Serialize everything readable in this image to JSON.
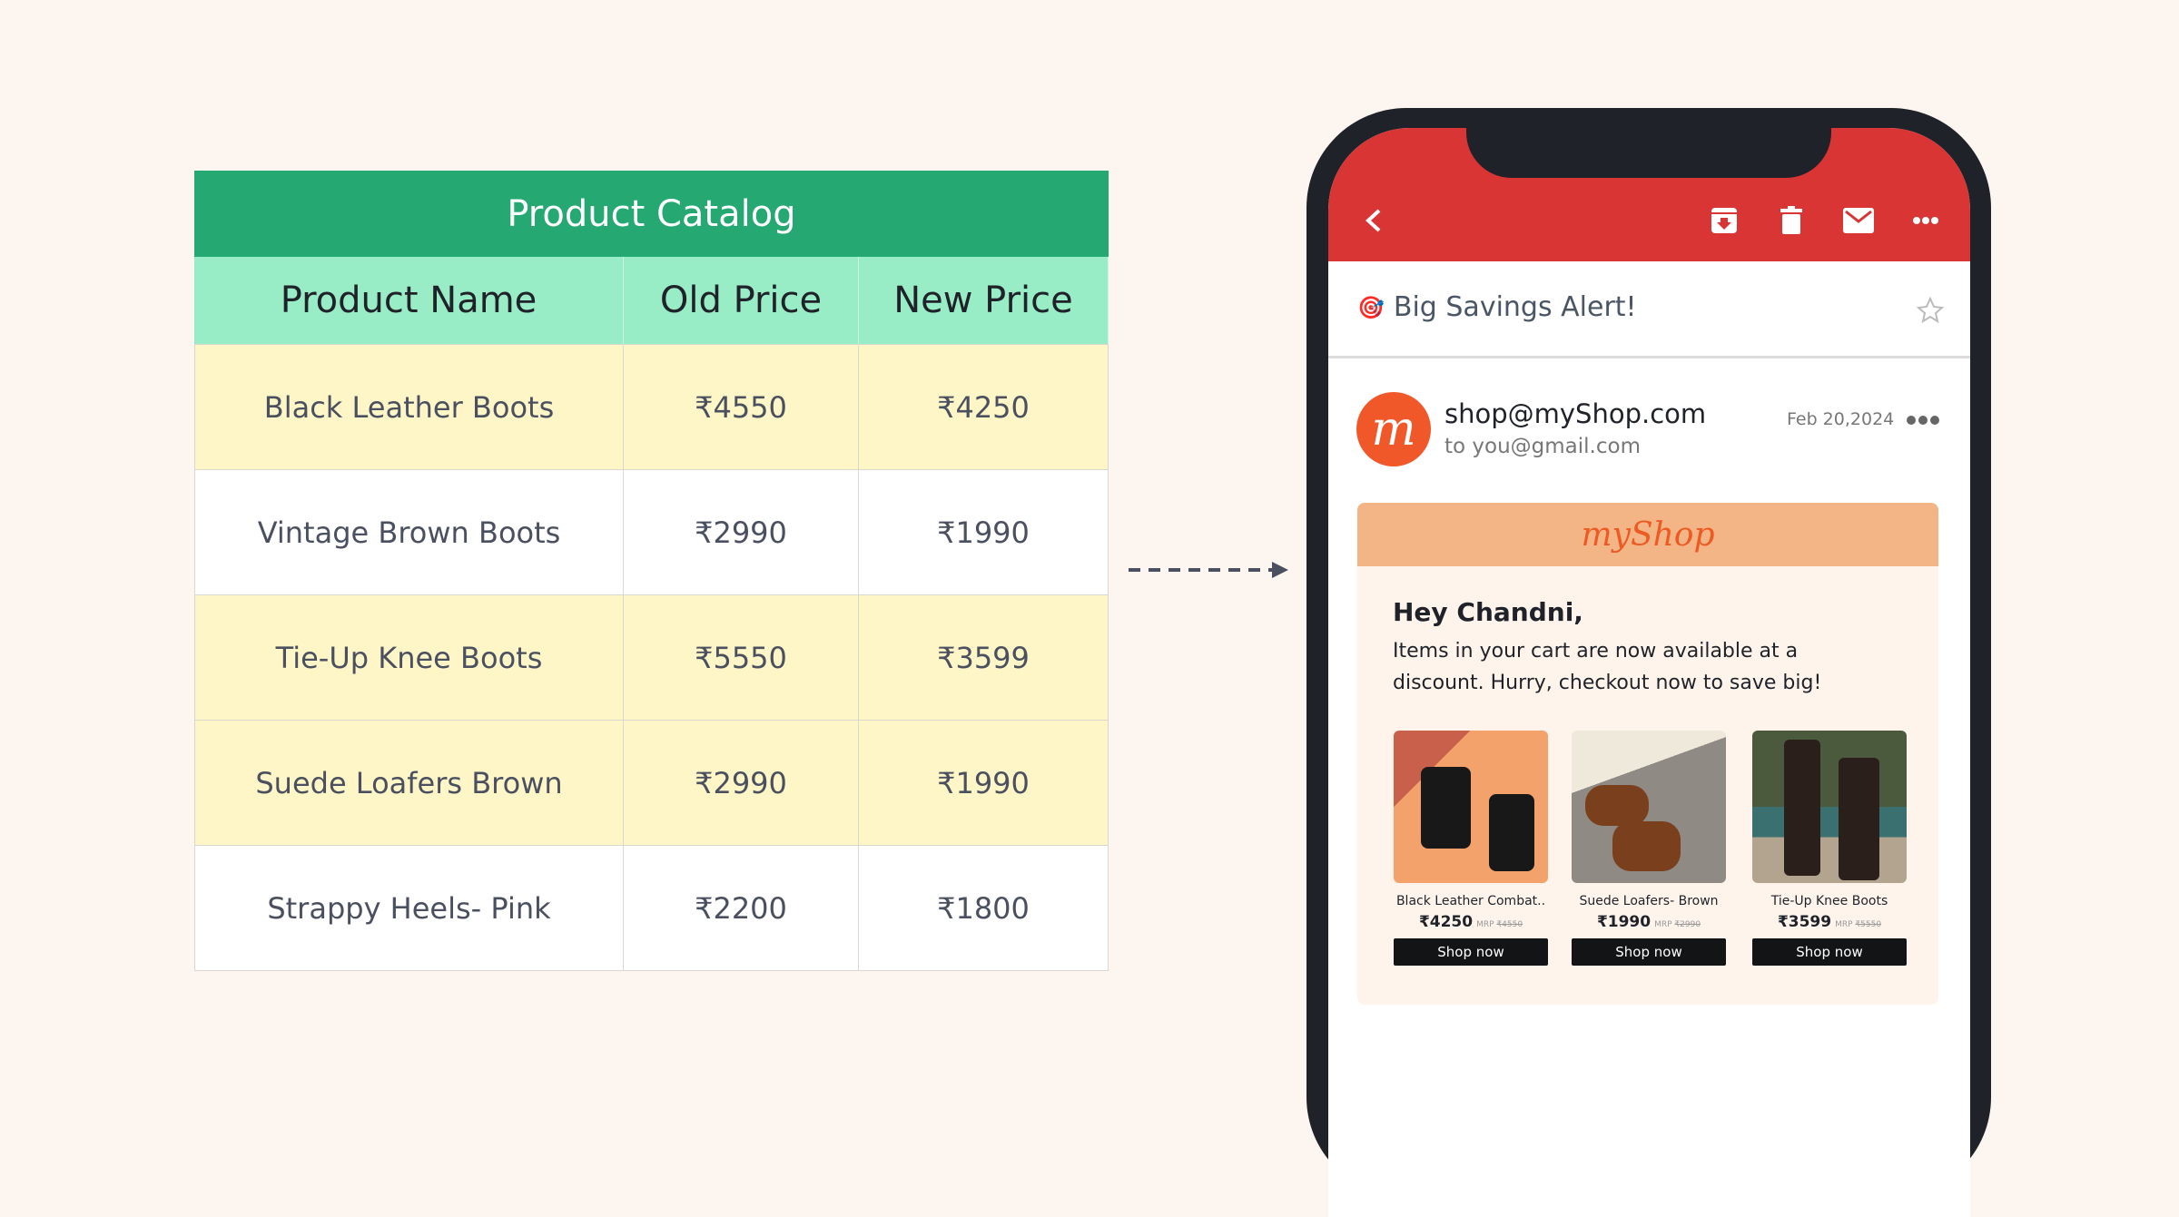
{
  "catalog": {
    "title": "Product Catalog",
    "headers": [
      "Product Name",
      "Old Price",
      "New Price"
    ],
    "rows": [
      [
        "Black Leather Boots",
        "₹4550",
        "₹4250"
      ],
      [
        "Vintage Brown Boots",
        "₹2990",
        "₹1990"
      ],
      [
        "Tie-Up Knee Boots",
        "₹5550",
        "₹3599"
      ],
      [
        "Suede Loafers Brown",
        "₹2990",
        "₹1990"
      ],
      [
        "Strappy Heels- Pink",
        "₹2200",
        "₹1800"
      ]
    ]
  },
  "email": {
    "subject": "Big Savings Alert!",
    "subject_icon": "🎯",
    "from": "shop@myShop.com",
    "to": "to you@gmail.com",
    "date": "Feb 20,2024",
    "avatar_letter": "m",
    "brand": "myShop",
    "greeting": "Hey Chandni,",
    "body": "Items in your cart are now available at a discount. Hurry, checkout now to save big!",
    "products": [
      {
        "name": "Black Leather Combat..",
        "price": "₹4250",
        "mrp_label": "MRP",
        "mrp": "₹4550",
        "cta": "Shop now"
      },
      {
        "name": "Suede Loafers- Brown",
        "price": "₹1990",
        "mrp_label": "MRP",
        "mrp": "₹2990",
        "cta": "Shop now"
      },
      {
        "name": "Tie-Up Knee Boots",
        "price": "₹3599",
        "mrp_label": "MRP",
        "mrp": "₹5550",
        "cta": "Shop now"
      }
    ]
  },
  "colors": {
    "accent_green": "#25a872",
    "header_mint": "#98ecc6",
    "mail_red": "#d93535",
    "brand_orange": "#f0582a"
  }
}
